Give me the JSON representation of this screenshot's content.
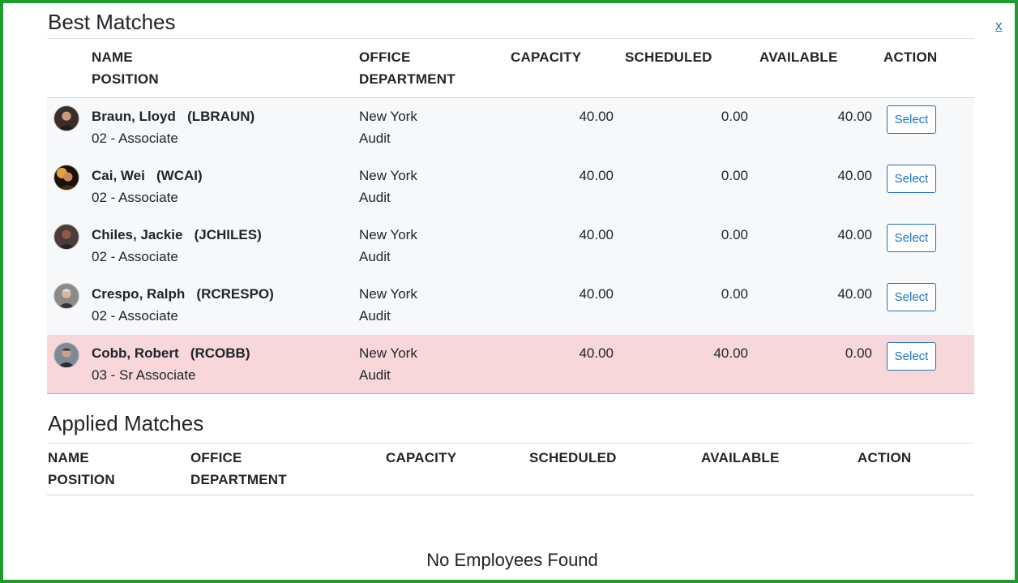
{
  "close_label": "x",
  "best": {
    "title": "Best Matches",
    "headers": {
      "name": "NAME",
      "position": "POSITION",
      "office": "OFFICE",
      "department": "DEPARTMENT",
      "capacity": "CAPACITY",
      "scheduled": "SCHEDULED",
      "available": "AVAILABLE",
      "action": "ACTION"
    },
    "rows": [
      {
        "name": "Braun, Lloyd",
        "code": "(LBRAUN)",
        "position": "02 - Associate",
        "office": "New York",
        "department": "Audit",
        "capacity": "40.00",
        "scheduled": "0.00",
        "available": "40.00",
        "action": "Select"
      },
      {
        "name": "Cai, Wei",
        "code": "(WCAI)",
        "position": "02 - Associate",
        "office": "New York",
        "department": "Audit",
        "capacity": "40.00",
        "scheduled": "0.00",
        "available": "40.00",
        "action": "Select"
      },
      {
        "name": "Chiles, Jackie",
        "code": "(JCHILES)",
        "position": "02 - Associate",
        "office": "New York",
        "department": "Audit",
        "capacity": "40.00",
        "scheduled": "0.00",
        "available": "40.00",
        "action": "Select"
      },
      {
        "name": "Crespo, Ralph",
        "code": "(RCRESPO)",
        "position": "02 - Associate",
        "office": "New York",
        "department": "Audit",
        "capacity": "40.00",
        "scheduled": "0.00",
        "available": "40.00",
        "action": "Select"
      },
      {
        "name": "Cobb, Robert",
        "code": "(RCOBB)",
        "position": "03 - Sr Associate",
        "office": "New York",
        "department": "Audit",
        "capacity": "40.00",
        "scheduled": "40.00",
        "available": "0.00",
        "action": "Select"
      }
    ]
  },
  "applied": {
    "title": "Applied Matches",
    "headers": {
      "name": "NAME",
      "position": "POSITION",
      "office": "OFFICE",
      "department": "DEPARTMENT",
      "capacity": "CAPACITY",
      "scheduled": "SCHEDULED",
      "available": "AVAILABLE",
      "action": "ACTION"
    },
    "empty_message": "No Employees Found"
  },
  "colors": {
    "frame_border": "#1f9a2c",
    "link": "#1a73c9",
    "row_striped": "#f7f8fa",
    "row_danger": "#f7d7da"
  }
}
